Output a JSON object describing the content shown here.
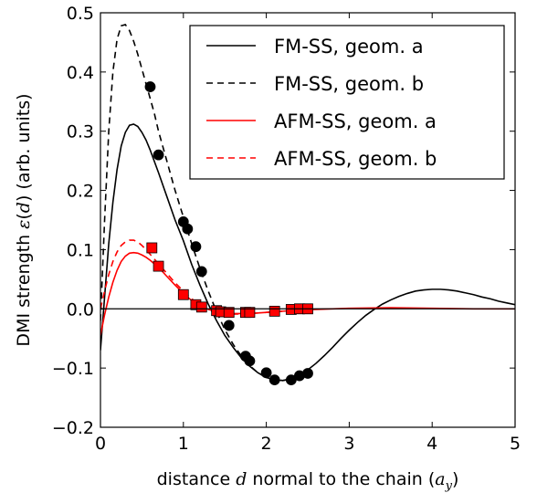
{
  "chart_data": {
    "type": "line",
    "title": "",
    "xlabel": "distance d normal to the chain (a_y)",
    "ylabel": "DMI strength ε(d) (arb. units)",
    "xlabel_parts": {
      "pre": "distance ",
      "var": "d",
      "post": " normal to the chain (",
      "unit": "a",
      "sub": "y",
      "close": ")"
    },
    "ylabel_parts": {
      "pre": "DMI strength ",
      "var": "ε",
      "open": "(",
      "arg": "d",
      "close": ") (arb. units)"
    },
    "xlim": [
      0,
      5
    ],
    "ylim": [
      -0.2,
      0.5
    ],
    "xticks": [
      0,
      1,
      2,
      3,
      4,
      5
    ],
    "xtick_labels": [
      "0",
      "1",
      "2",
      "3",
      "4",
      "5"
    ],
    "yticks": [
      -0.2,
      -0.1,
      0.0,
      0.1,
      0.2,
      0.3,
      0.4,
      0.5
    ],
    "ytick_labels": [
      "−0.2",
      "−0.1",
      "0.0",
      "0.1",
      "0.2",
      "0.3",
      "0.4",
      "0.5"
    ],
    "grid": false,
    "zero_line": true,
    "legend_position": "top-right",
    "series": [
      {
        "name": "FM-SS, geom. a",
        "color": "#000000",
        "dash": "solid",
        "x": [
          0.0,
          0.05,
          0.1,
          0.15,
          0.2,
          0.25,
          0.3,
          0.35,
          0.4,
          0.45,
          0.5,
          0.55,
          0.6,
          0.7,
          0.8,
          0.9,
          1.0,
          1.1,
          1.2,
          1.3,
          1.4,
          1.5,
          1.6,
          1.7,
          1.8,
          1.9,
          2.0,
          2.1,
          2.2,
          2.3,
          2.4,
          2.5,
          2.6,
          2.7,
          2.8,
          2.9,
          3.0,
          3.1,
          3.2,
          3.3,
          3.4,
          3.5,
          3.6,
          3.7,
          3.8,
          3.9,
          4.0,
          4.1,
          4.2,
          4.3,
          4.4,
          4.5,
          4.6,
          4.7,
          4.8,
          4.9,
          5.0
        ],
        "y": [
          -0.07,
          0.02,
          0.11,
          0.18,
          0.235,
          0.275,
          0.298,
          0.31,
          0.312,
          0.308,
          0.298,
          0.285,
          0.268,
          0.23,
          0.19,
          0.15,
          0.115,
          0.075,
          0.04,
          0.008,
          -0.02,
          -0.045,
          -0.065,
          -0.083,
          -0.097,
          -0.108,
          -0.116,
          -0.12,
          -0.121,
          -0.118,
          -0.112,
          -0.103,
          -0.092,
          -0.079,
          -0.065,
          -0.05,
          -0.036,
          -0.023,
          -0.011,
          -0.001,
          0.008,
          0.015,
          0.021,
          0.026,
          0.03,
          0.032,
          0.033,
          0.033,
          0.032,
          0.03,
          0.027,
          0.024,
          0.02,
          0.017,
          0.013,
          0.01,
          0.007
        ]
      },
      {
        "name": "FM-SS, geom. b",
        "color": "#000000",
        "dash": "dashed",
        "x": [
          0.0,
          0.05,
          0.1,
          0.15,
          0.2,
          0.25,
          0.3,
          0.35,
          0.4,
          0.45,
          0.5,
          0.55,
          0.6,
          0.65,
          0.7,
          0.8,
          0.9,
          1.0,
          1.1,
          1.2,
          1.3,
          1.4,
          1.5,
          1.6,
          1.7,
          1.8,
          1.9,
          2.0,
          2.1,
          2.2,
          2.3,
          2.4,
          2.5
        ],
        "y": [
          -0.02,
          0.15,
          0.3,
          0.4,
          0.455,
          0.478,
          0.48,
          0.47,
          0.452,
          0.43,
          0.405,
          0.38,
          0.355,
          0.33,
          0.3,
          0.25,
          0.2,
          0.155,
          0.11,
          0.068,
          0.03,
          -0.005,
          -0.035,
          -0.06,
          -0.08,
          -0.096,
          -0.108,
          -0.116,
          -0.12,
          -0.121,
          -0.118,
          -0.113,
          -0.108
        ]
      },
      {
        "name": "AFM-SS, geom. a",
        "color": "#ff0000",
        "dash": "solid",
        "x": [
          0.0,
          0.05,
          0.1,
          0.15,
          0.2,
          0.25,
          0.3,
          0.35,
          0.4,
          0.45,
          0.5,
          0.55,
          0.6,
          0.7,
          0.8,
          0.9,
          1.0,
          1.1,
          1.2,
          1.3,
          1.4,
          1.5,
          1.6,
          1.8,
          2.0,
          2.2,
          2.4,
          2.6,
          2.8,
          3.0,
          3.5,
          4.0,
          4.5,
          5.0
        ],
        "y": [
          -0.045,
          -0.01,
          0.02,
          0.045,
          0.065,
          0.08,
          0.089,
          0.094,
          0.095,
          0.094,
          0.091,
          0.087,
          0.082,
          0.07,
          0.055,
          0.04,
          0.026,
          0.014,
          0.005,
          -0.001,
          -0.005,
          -0.007,
          -0.008,
          -0.008,
          -0.006,
          -0.004,
          -0.002,
          -0.001,
          0.0,
          0.001,
          0.002,
          0.001,
          0.0,
          0.0
        ]
      },
      {
        "name": "AFM-SS, geom. b",
        "color": "#ff0000",
        "dash": "dashed",
        "x": [
          0.0,
          0.05,
          0.1,
          0.15,
          0.2,
          0.25,
          0.3,
          0.35,
          0.4,
          0.45,
          0.5,
          0.55,
          0.6,
          0.7,
          0.8,
          0.9,
          1.0,
          1.1,
          1.2,
          1.3,
          1.4,
          1.5,
          1.6,
          1.8,
          2.0,
          2.2,
          2.4,
          2.5
        ],
        "y": [
          0.0,
          0.03,
          0.058,
          0.08,
          0.096,
          0.107,
          0.113,
          0.116,
          0.116,
          0.113,
          0.107,
          0.1,
          0.092,
          0.076,
          0.06,
          0.044,
          0.03,
          0.017,
          0.007,
          0.0,
          -0.005,
          -0.008,
          -0.009,
          -0.008,
          -0.006,
          -0.004,
          -0.002,
          -0.001
        ]
      }
    ],
    "markers": [
      {
        "series": "FM-SS",
        "shape": "circle",
        "color": "#000000",
        "points": [
          [
            0.6,
            0.375
          ],
          [
            0.7,
            0.26
          ],
          [
            1.0,
            0.147
          ],
          [
            1.05,
            0.135
          ],
          [
            1.15,
            0.105
          ],
          [
            1.22,
            0.063
          ],
          [
            1.55,
            -0.028
          ],
          [
            1.75,
            -0.08
          ],
          [
            1.8,
            -0.088
          ],
          [
            2.0,
            -0.108
          ],
          [
            2.1,
            -0.12
          ],
          [
            2.3,
            -0.12
          ],
          [
            2.4,
            -0.113
          ],
          [
            2.5,
            -0.109
          ]
        ]
      },
      {
        "series": "AFM-SS",
        "shape": "square",
        "color": "#ff0000",
        "points": [
          [
            0.62,
            0.103
          ],
          [
            0.7,
            0.072
          ],
          [
            1.0,
            0.024
          ],
          [
            1.15,
            0.007
          ],
          [
            1.22,
            0.003
          ],
          [
            1.4,
            -0.003
          ],
          [
            1.45,
            -0.005
          ],
          [
            1.55,
            -0.006
          ],
          [
            1.75,
            -0.006
          ],
          [
            1.8,
            -0.006
          ],
          [
            2.1,
            -0.004
          ],
          [
            2.3,
            -0.001
          ],
          [
            2.4,
            0.0
          ],
          [
            2.5,
            0.0
          ]
        ]
      }
    ]
  }
}
